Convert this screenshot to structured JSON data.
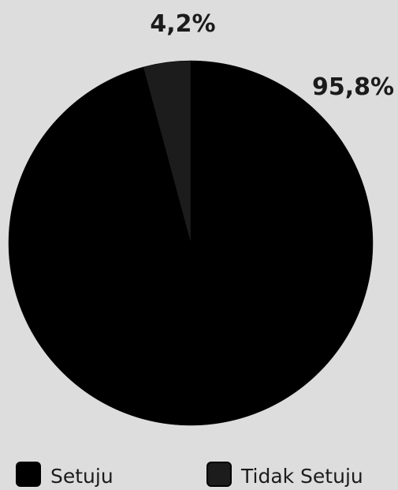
{
  "chart_data": {
    "type": "pie",
    "title": "",
    "categories": [
      "Setuju",
      "Tidak Setuju"
    ],
    "values": [
      95.8,
      4.2
    ],
    "data_labels": [
      "95,8%",
      "4,2%"
    ],
    "colors": [
      "#000000",
      "#1c1c1c"
    ],
    "start_angle": "12 o'clock",
    "direction": "clockwise",
    "legend": {
      "placement": "bottom",
      "items": [
        {
          "label": "Setuju",
          "color": "#000000"
        },
        {
          "label": "Tidak Setuju",
          "color": "#1c1c1c"
        }
      ]
    }
  },
  "background_color": "#dddddd",
  "text_color": "#1b1b1b"
}
